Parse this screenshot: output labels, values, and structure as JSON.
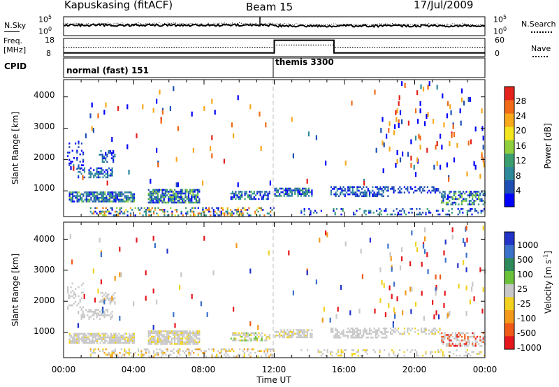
{
  "header": {
    "station": "Kapuskasing (fitACF)",
    "beam": "Beam 15",
    "date": "17/Jul/2009"
  },
  "labels": {
    "nsky": "N.Sky",
    "nsearch": "N.Search",
    "freq_top": "Freq.",
    "freq_unit": "[MHz]",
    "nave": "Nave",
    "cpid": "CPID",
    "nsky_tick_hi": "10^5",
    "nsky_tick_lo": "10^0",
    "nsearch_tick_hi": "10^5",
    "nsearch_tick_lo": "10^0",
    "freq_tick_hi": "18",
    "freq_tick_lo": "8",
    "nave_tick_hi": "60",
    "nave_tick_lo": "0"
  },
  "cpid_segments": [
    {
      "label": "normal (fast) 151",
      "start_hour": 0,
      "end_hour": 12
    },
    {
      "label": "themis 3300",
      "start_hour": 12,
      "end_hour": 24
    }
  ],
  "chart_data": [
    {
      "type": "line",
      "name": "noise",
      "series": [
        {
          "name": "N.Sky",
          "style": "solid",
          "value": "10^2"
        },
        {
          "name": "N.Search",
          "style": "dotted",
          "value": "10^2"
        }
      ]
    },
    {
      "type": "line",
      "name": "frequency-nave",
      "series": [
        {
          "name": "Freq.",
          "style": "solid",
          "segments": [
            {
              "start": 0,
              "end": 12,
              "value": 10
            },
            {
              "start": 12,
              "end": 15.4,
              "value": 17
            },
            {
              "start": 15.4,
              "end": 24,
              "value": 10
            }
          ]
        },
        {
          "name": "Nave",
          "style": "dotted",
          "segments": [
            {
              "start": 0,
              "end": 12,
              "value": 30
            },
            {
              "start": 12,
              "end": 15.4,
              "value": 38
            },
            {
              "start": 15.4,
              "end": 24,
              "value": 30
            }
          ]
        }
      ],
      "ylim_left": [
        8,
        18
      ],
      "ylim_right": [
        0,
        60
      ]
    },
    {
      "type": "heatmap",
      "name": "power",
      "ylabel": "Slant Range [km]",
      "yticks": [
        "1000",
        "2000",
        "3000",
        "4000"
      ],
      "ylim": [
        180,
        4550
      ],
      "xlim": [
        0,
        24
      ],
      "colorbar": {
        "label": "Power [dB]",
        "ticks": [
          "4",
          "8",
          "12",
          "16",
          "20",
          "24",
          "28"
        ],
        "colors": [
          "#0000ff",
          "#1f4fb4",
          "#2e8a9a",
          "#3a9e6e",
          "#8fce3c",
          "#f2e51e",
          "#f7a81b",
          "#f06a17",
          "#e5221c"
        ]
      },
      "bands": [
        {
          "x0": 0.3,
          "x1": 4.1,
          "r0": 620,
          "r1": 980,
          "density": 0.8,
          "levels": [
            0,
            1,
            1,
            2,
            2,
            3,
            4
          ]
        },
        {
          "x0": 4.8,
          "x1": 7.8,
          "r0": 620,
          "r1": 1060,
          "density": 0.8,
          "levels": [
            0,
            1,
            1,
            2,
            3,
            4
          ]
        },
        {
          "x0": 0.8,
          "x1": 2.8,
          "r0": 1400,
          "r1": 1750,
          "density": 0.45,
          "levels": [
            0,
            1,
            2,
            2
          ]
        },
        {
          "x0": 2.0,
          "x1": 3.0,
          "r0": 1900,
          "r1": 2300,
          "density": 0.35,
          "levels": [
            0,
            1,
            2
          ]
        },
        {
          "x0": 0.2,
          "x1": 1.2,
          "r0": 1700,
          "r1": 2600,
          "density": 0.2,
          "levels": [
            0,
            0,
            1
          ]
        },
        {
          "x0": 9.5,
          "x1": 11.8,
          "r0": 700,
          "r1": 1000,
          "density": 0.55,
          "levels": [
            0,
            1,
            2,
            3
          ]
        },
        {
          "x0": 12.0,
          "x1": 14.2,
          "r0": 800,
          "r1": 1100,
          "density": 0.65,
          "levels": [
            0,
            1,
            2,
            3,
            3
          ]
        },
        {
          "x0": 15.2,
          "x1": 18.5,
          "r0": 800,
          "r1": 1150,
          "density": 0.55,
          "levels": [
            0,
            1,
            1,
            2
          ]
        },
        {
          "x0": 18.5,
          "x1": 21.5,
          "r0": 900,
          "r1": 1150,
          "density": 0.4,
          "levels": [
            0,
            1,
            1
          ]
        },
        {
          "x0": 21.5,
          "x1": 24,
          "r0": 550,
          "r1": 1000,
          "density": 0.55,
          "levels": [
            0,
            1,
            2,
            3,
            4
          ]
        },
        {
          "x0": 1.5,
          "x1": 12.0,
          "r0": 200,
          "r1": 480,
          "density": 0.35,
          "levels": [
            0,
            1,
            2,
            3,
            4,
            5,
            6,
            7
          ]
        },
        {
          "x0": 13.5,
          "x1": 24,
          "r0": 200,
          "r1": 450,
          "density": 0.22,
          "levels": [
            0,
            1,
            2,
            3
          ]
        },
        {
          "x0": 0,
          "x1": 24,
          "r0": 1200,
          "r1": 4400,
          "density": 0.006,
          "levels": [
            0,
            0,
            1,
            2,
            6,
            7,
            8
          ]
        },
        {
          "x0": 18,
          "x1": 24,
          "r0": 1500,
          "r1": 4500,
          "density": 0.018,
          "levels": [
            0,
            0,
            1,
            2,
            6,
            7,
            8
          ]
        }
      ]
    },
    {
      "type": "heatmap",
      "name": "velocity",
      "ylabel": "Slant Range [km]",
      "yticks": [
        "1000",
        "2000",
        "3000",
        "4000"
      ],
      "ylim": [
        180,
        4550
      ],
      "xlim": [
        0,
        24
      ],
      "xlabel": "Time UT",
      "xticks": [
        "00:00",
        "04:00",
        "08:00",
        "12:00",
        "16:00",
        "20:00",
        "00:00"
      ],
      "colorbar": {
        "label": "Velocity [m s^-1]",
        "ticks": [
          "1000",
          "500",
          "100",
          "25",
          "-25",
          "-100",
          "-500",
          "-1000"
        ],
        "colors": [
          "#2233c8",
          "#3b71c9",
          "#2e8a5a",
          "#6bc23a",
          "#c8c8c8",
          "#f2d21e",
          "#f39a1a",
          "#f05a17",
          "#e5161c"
        ]
      },
      "bands": [
        {
          "x0": 0.3,
          "x1": 4.1,
          "r0": 620,
          "r1": 980,
          "density": 0.8,
          "levels": [
            4,
            4,
            4,
            4,
            4,
            5
          ]
        },
        {
          "x0": 4.8,
          "x1": 7.8,
          "r0": 620,
          "r1": 1060,
          "density": 0.8,
          "levels": [
            4,
            4,
            4,
            4,
            5
          ]
        },
        {
          "x0": 0.8,
          "x1": 2.8,
          "r0": 1400,
          "r1": 1750,
          "density": 0.45,
          "levels": [
            4
          ]
        },
        {
          "x0": 2.0,
          "x1": 3.0,
          "r0": 1900,
          "r1": 2300,
          "density": 0.35,
          "levels": [
            4
          ]
        },
        {
          "x0": 0.2,
          "x1": 1.2,
          "r0": 1700,
          "r1": 2600,
          "density": 0.2,
          "levels": [
            4
          ]
        },
        {
          "x0": 9.5,
          "x1": 11.8,
          "r0": 700,
          "r1": 1000,
          "density": 0.55,
          "levels": [
            4,
            4,
            5,
            3
          ]
        },
        {
          "x0": 12.0,
          "x1": 14.2,
          "r0": 800,
          "r1": 1100,
          "density": 0.65,
          "levels": [
            4,
            4,
            4,
            5
          ]
        },
        {
          "x0": 15.2,
          "x1": 18.5,
          "r0": 800,
          "r1": 1150,
          "density": 0.55,
          "levels": [
            4,
            4,
            4
          ]
        },
        {
          "x0": 18.5,
          "x1": 21.5,
          "r0": 900,
          "r1": 1150,
          "density": 0.4,
          "levels": [
            4,
            4,
            5
          ]
        },
        {
          "x0": 21.5,
          "x1": 24,
          "r0": 550,
          "r1": 1000,
          "density": 0.55,
          "levels": [
            4,
            4,
            4,
            7,
            8
          ]
        },
        {
          "x0": 1.5,
          "x1": 12.0,
          "r0": 200,
          "r1": 480,
          "density": 0.35,
          "levels": [
            4,
            4,
            4,
            5,
            6
          ]
        },
        {
          "x0": 13.5,
          "x1": 24,
          "r0": 200,
          "r1": 450,
          "density": 0.22,
          "levels": [
            4,
            4,
            5
          ]
        },
        {
          "x0": 0,
          "x1": 24,
          "r0": 1200,
          "r1": 4400,
          "density": 0.006,
          "levels": [
            4,
            5,
            6,
            7,
            8,
            1,
            0
          ]
        },
        {
          "x0": 18,
          "x1": 24,
          "r0": 1500,
          "r1": 4500,
          "density": 0.018,
          "levels": [
            4,
            5,
            6,
            7,
            8,
            1,
            0
          ]
        }
      ]
    }
  ]
}
